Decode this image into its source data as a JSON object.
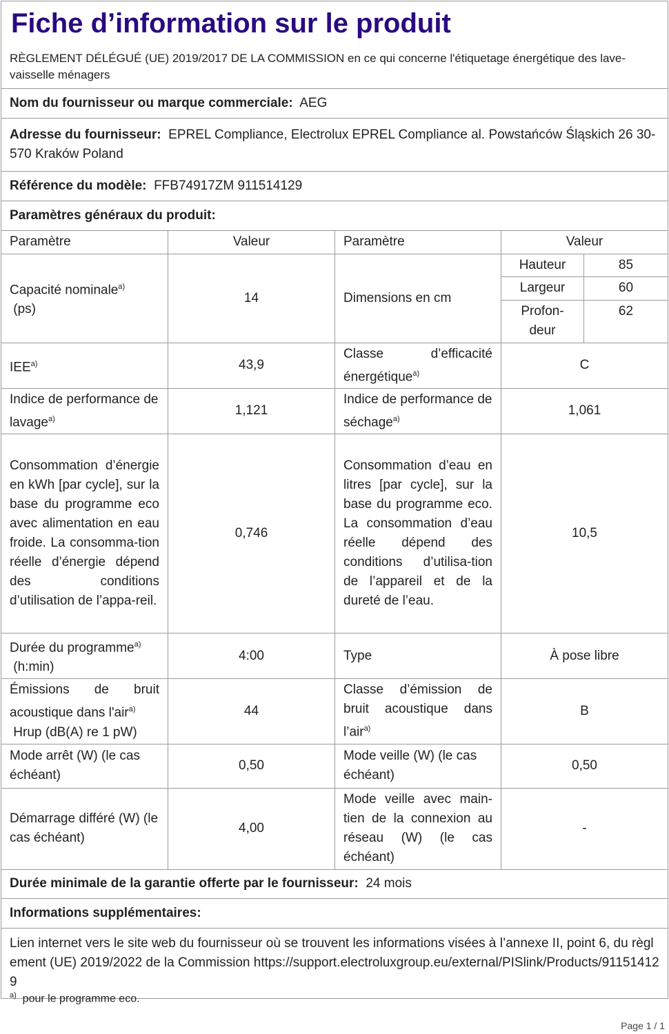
{
  "title": "Fiche d’information sur le produit",
  "regulation": "RÈGLEMENT DÉLÉGUÉ (UE) 2019/2017 DE LA COMMISSION en ce qui concerne l'étiquetage énergétique des lave-vaisselle ménagers",
  "supplier": {
    "label": "Nom du fournisseur ou marque commerciale:",
    "value": "AEG"
  },
  "address": {
    "label": "Adresse du fournisseur:",
    "value": "EPREL Compliance, Electrolux EPREL Compliance al. Powstańców Śląskich 26 30-570 Kraków Poland"
  },
  "model": {
    "label": "Référence du modèle:",
    "value": "FFB74917ZM 911514129"
  },
  "general_params": "Paramètres généraux du produit:",
  "headers": {
    "param": "Paramètre",
    "value": "Valeur"
  },
  "sup": "a)",
  "rows": {
    "capacity": {
      "label": "Capacité nominale",
      "unit": "(ps)",
      "value": "14"
    },
    "dimensions": {
      "label": "Dimensions en cm",
      "height_label": "Hauteur",
      "height": "85",
      "width_label": "Largeur",
      "width": "60",
      "depth_label": "Profon-deur",
      "depth": "62"
    },
    "eei": {
      "label": "IEE",
      "value": "43,9"
    },
    "energy_class": {
      "label": "Classe d’efficacité énergétique",
      "value": "C"
    },
    "cleaning": {
      "label": "Indice de performance de lavage",
      "value": "1,121"
    },
    "drying": {
      "label": "Indice de performance de séchage",
      "value": "1,061"
    },
    "energy": {
      "label": "Consommation d’énergie en kWh [par cycle], sur la base du programme eco avec alimentation en eau froide. La consomma-tion réelle d’énergie dépend des conditions d’utilisation de l’appa-reil.",
      "value": "0,746"
    },
    "water": {
      "label": "Consommation d’eau en litres [par cycle], sur la base du programme eco. La consommation d’eau réelle dépend des conditions d’utilisa-tion de l’appareil et de la dureté de l’eau.",
      "value": "10,5"
    },
    "duration": {
      "label": "Durée du programme",
      "unit": "(h:min)",
      "value": "4:00"
    },
    "type": {
      "label": "Type",
      "value": "À pose libre"
    },
    "noise": {
      "label": "Émissions de bruit acoustique dans l'air",
      "unit": "Hrup (dB(A) re 1 pW)",
      "value": "44"
    },
    "noise_class": {
      "label": "Classe d’émission de bruit acoustique dans l’air",
      "value": "B"
    },
    "off": {
      "label": "Mode arrêt (W) (le cas échéant)",
      "value": "0,50"
    },
    "standby": {
      "label": "Mode veille (W) (le cas échéant)",
      "value": "0,50"
    },
    "delay": {
      "label": "Démarrage différé (W) (le cas échéant)",
      "value": "4,00"
    },
    "network": {
      "label": "Mode veille avec main-tien de la connexion au réseau (W) (le cas échéant)",
      "value": "-"
    }
  },
  "warranty": {
    "label": "Durée minimale de la garantie offerte par le fournisseur:",
    "value": "24 mois"
  },
  "additional": "Informations supplémentaires:",
  "link": "Lien internet vers le site web du fournisseur où se trouvent les informations visées à l’annexe II, point 6, du règlement (UE) 2019/2022 de la Commission  https://support.electroluxgroup.eu/external/PISlink/Products/911514129",
  "footnote": "pour le programme eco.",
  "page": "Page 1 / 1"
}
